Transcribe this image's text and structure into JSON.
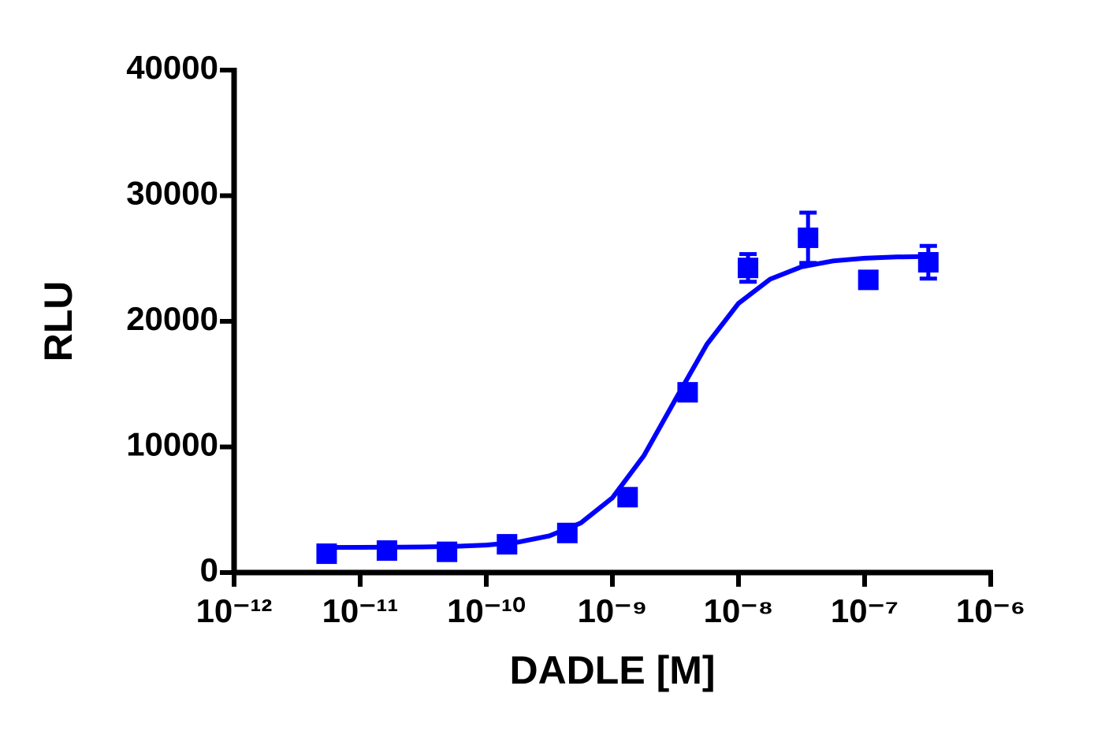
{
  "chart_data": {
    "type": "scatter",
    "x_axis_label": "DADLE [M]",
    "y_axis_label": "RLU",
    "xlog": true,
    "xlim": [
      1e-12,
      1e-06
    ],
    "xticks": [
      {
        "value": 1e-12,
        "label": "10⁻¹²"
      },
      {
        "value": 1e-11,
        "label": "10⁻¹¹"
      },
      {
        "value": 1e-10,
        "label": "10⁻¹⁰"
      },
      {
        "value": 1e-09,
        "label": "10⁻⁹"
      },
      {
        "value": 1e-08,
        "label": "10⁻⁸"
      },
      {
        "value": 1e-07,
        "label": "10⁻⁷"
      },
      {
        "value": 1e-06,
        "label": "10⁻⁶"
      }
    ],
    "ylim": [
      0,
      40000
    ],
    "yticks": [
      0,
      10000,
      20000,
      30000,
      40000
    ],
    "color": "#0000ff",
    "x": [
      5.42e-12,
      1.63e-11,
      4.88e-11,
      1.46e-10,
      4.39e-10,
      1.32e-09,
      3.95e-09,
      1.19e-08,
      3.56e-08,
      1.07e-07,
      3.2e-07
    ],
    "values": [
      1500,
      1750,
      1650,
      2250,
      3150,
      6000,
      14350,
      24250,
      26650,
      23300,
      24700
    ],
    "errors": [
      100,
      100,
      100,
      150,
      150,
      300,
      300,
      1100,
      2000,
      300,
      1300
    ],
    "fit": {
      "x": [
        5.62e-12,
        1e-11,
        1.78e-11,
        3.16e-11,
        5.62e-11,
        1e-10,
        1.78e-10,
        3.16e-10,
        5.62e-10,
        1e-09,
        1.78e-09,
        3.16e-09,
        5.62e-09,
        1e-08,
        1.78e-08,
        3.16e-08,
        5.62e-08,
        1e-07,
        1.78e-07,
        3.16e-07
      ],
      "values": [
        2003,
        2008,
        2017,
        2038,
        2085,
        2188,
        2417,
        2913,
        3950,
        5952,
        9318,
        13771,
        18179,
        21431,
        23352,
        24338,
        24806,
        25023,
        25120,
        25164
      ]
    }
  }
}
